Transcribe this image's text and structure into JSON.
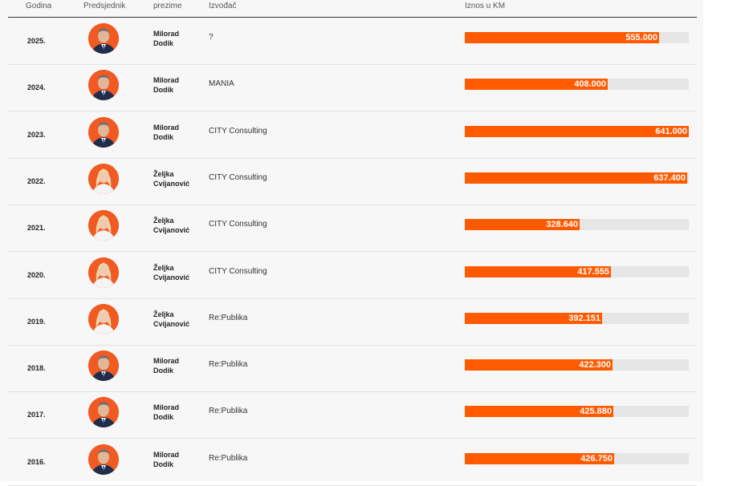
{
  "headers": {
    "year": "Godina",
    "president": "Predsjednik",
    "surname": "prezime",
    "contractor": "Izvođač",
    "amount": "Iznos u KM"
  },
  "colors": {
    "bar": "#ff5a00",
    "track": "#e6e6e6",
    "avatar_bg": "#f15a22"
  },
  "chart_data": {
    "type": "bar",
    "orientation": "horizontal",
    "xlim": [
      0,
      641000
    ],
    "rows": [
      {
        "year": "2025.",
        "first": "Milorad",
        "last": "Dodik",
        "contractor": "?",
        "value": 555000,
        "label": "555.000",
        "avatar": "man-portrait-icon"
      },
      {
        "year": "2024.",
        "first": "Milorad",
        "last": "Dodik",
        "contractor": "MANIA",
        "value": 408000,
        "label": "408.000",
        "avatar": "man-portrait-icon"
      },
      {
        "year": "2023.",
        "first": "Milorad",
        "last": "Dodik",
        "contractor": "CITY Consulting",
        "value": 641000,
        "label": "641.000",
        "avatar": "man-portrait-icon"
      },
      {
        "year": "2022.",
        "first": "Željka",
        "last": "Cvijanović",
        "contractor": "CITY Consulting",
        "value": 637400,
        "label": "637.400",
        "avatar": "woman-portrait-icon"
      },
      {
        "year": "2021.",
        "first": "Željka",
        "last": "Cvijanović",
        "contractor": "CITY Consulting",
        "value": 328640,
        "label": "328.640",
        "avatar": "woman-portrait-icon"
      },
      {
        "year": "2020.",
        "first": "Željka",
        "last": "Cvijanović",
        "contractor": "CITY Consulting",
        "value": 417555,
        "label": "417.555",
        "avatar": "woman-portrait-icon"
      },
      {
        "year": "2019.",
        "first": "Željka",
        "last": "Cvijanović",
        "contractor": "Re:Publika",
        "value": 392151,
        "label": "392.151",
        "avatar": "woman-portrait-icon"
      },
      {
        "year": "2018.",
        "first": "Milorad",
        "last": "Dodik",
        "contractor": "Re:Publika",
        "value": 422300,
        "label": "422.300",
        "avatar": "man-portrait-icon"
      },
      {
        "year": "2017.",
        "first": "Milorad",
        "last": "Dodik",
        "contractor": "Re:Publika",
        "value": 425880,
        "label": "425.880",
        "avatar": "man-portrait-icon"
      },
      {
        "year": "2016.",
        "first": "Milorad",
        "last": "Dodik",
        "contractor": "Re:Publika",
        "value": 426750,
        "label": "426.750",
        "avatar": "man-portrait-icon"
      }
    ]
  }
}
